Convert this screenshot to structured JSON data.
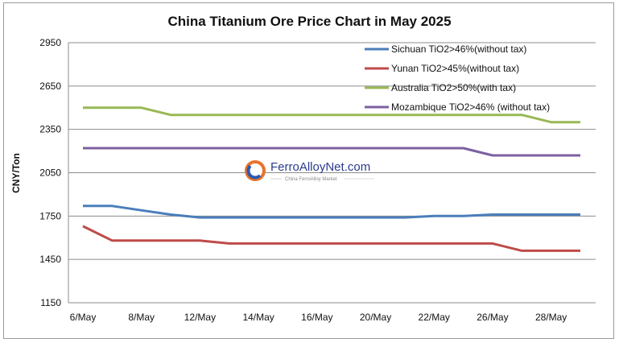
{
  "chart_data": {
    "type": "line",
    "title": "China Titanium Ore Price Chart in May 2025",
    "ylabel": "CNY/Ton",
    "xlabel": "",
    "ylim": [
      1150,
      2950
    ],
    "yticks": [
      1150,
      1450,
      1750,
      2050,
      2350,
      2650,
      2950
    ],
    "x_tick_labels": [
      "6/May",
      "8/May",
      "12/May",
      "14/May",
      "16/May",
      "20/May",
      "22/May",
      "26/May",
      "28/May"
    ],
    "x": [
      "6/May",
      "7/May",
      "8/May",
      "9/May",
      "12/May",
      "13/May",
      "14/May",
      "15/May",
      "16/May",
      "19/May",
      "20/May",
      "21/May",
      "22/May",
      "23/May",
      "26/May",
      "27/May",
      "28/May",
      "29/May"
    ],
    "grid": true,
    "legend_position": "top-right",
    "series": [
      {
        "name": "Sichuan TiO2>46%(without tax)",
        "color": "#4a7ebb",
        "values": [
          1820,
          1820,
          1790,
          1760,
          1740,
          1740,
          1740,
          1740,
          1740,
          1740,
          1740,
          1740,
          1750,
          1750,
          1760,
          1760,
          1760,
          1760
        ]
      },
      {
        "name": "Yunan TiO2>45%(without tax)",
        "color": "#be4b48",
        "values": [
          1680,
          1580,
          1580,
          1580,
          1580,
          1560,
          1560,
          1560,
          1560,
          1560,
          1560,
          1560,
          1560,
          1560,
          1560,
          1510,
          1510,
          1510
        ]
      },
      {
        "name": "Australia TiO2>50%(with tax)",
        "color": "#98b954",
        "values": [
          2500,
          2500,
          2500,
          2450,
          2450,
          2450,
          2450,
          2450,
          2450,
          2450,
          2450,
          2450,
          2450,
          2450,
          2450,
          2450,
          2400,
          2400
        ]
      },
      {
        "name": "Mozambique TiO2>46% (without tax)",
        "color": "#7d60a0",
        "values": [
          2220,
          2220,
          2220,
          2220,
          2220,
          2220,
          2220,
          2220,
          2220,
          2220,
          2220,
          2220,
          2220,
          2220,
          2170,
          2170,
          2170,
          2170
        ]
      }
    ]
  },
  "watermark": {
    "text": "FerroAlloyNet.com",
    "subtext": "China FerroAlloy Market"
  }
}
